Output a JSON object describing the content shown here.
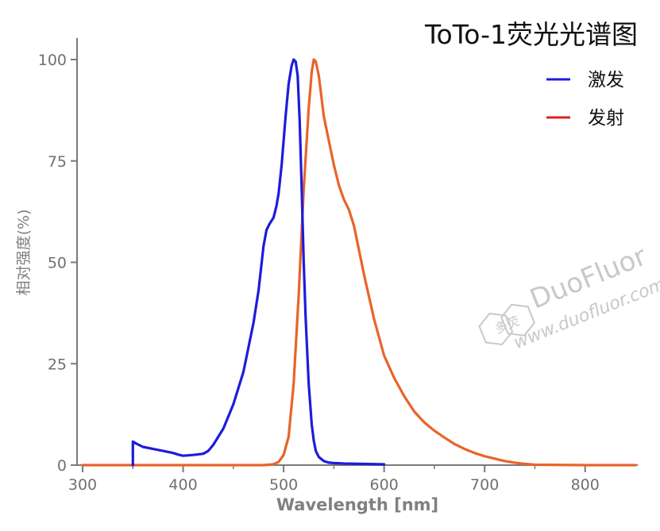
{
  "chart_data": {
    "type": "line",
    "title": "ToTo-1荧光光谱图",
    "xlabel": "Wavelength [nm]",
    "ylabel": "相对强度(%)",
    "xlim": [
      300,
      850
    ],
    "ylim": [
      0,
      100
    ],
    "xticks": [
      300,
      400,
      500,
      600,
      700,
      800
    ],
    "yticks": [
      0,
      25,
      50,
      75,
      100
    ],
    "legend_position": "top-right",
    "grid": false,
    "series": [
      {
        "name": "激发",
        "color": "#1c1cdc",
        "x": [
          350,
          350,
          352,
          360,
          370,
          380,
          390,
          395,
          400,
          405,
          410,
          420,
          425,
          430,
          440,
          450,
          460,
          465,
          470,
          475,
          480,
          483,
          486,
          490,
          493,
          495,
          498,
          500,
          502,
          505,
          508,
          510,
          512,
          514,
          516,
          518,
          520,
          522,
          525,
          528,
          530,
          532,
          535,
          540,
          545,
          550,
          560,
          580,
          600
        ],
        "y": [
          0,
          5.8,
          5.5,
          4.5,
          4.0,
          3.5,
          3.0,
          2.6,
          2.3,
          2.4,
          2.5,
          2.8,
          3.5,
          5,
          9,
          15,
          23,
          29,
          35,
          43,
          54,
          58,
          59.5,
          61,
          64,
          67,
          74,
          80,
          86,
          94,
          98.5,
          100,
          99.5,
          96,
          85,
          68,
          50,
          36,
          20,
          10,
          6,
          3.5,
          2,
          1,
          0.6,
          0.5,
          0.4,
          0.3,
          0.2
        ]
      },
      {
        "name": "发射",
        "color": "#dd2020",
        "x": [
          300,
          400,
          450,
          480,
          490,
          495,
          500,
          505,
          510,
          515,
          520,
          525,
          528,
          530,
          532,
          535,
          538,
          540,
          545,
          550,
          555,
          560,
          565,
          570,
          580,
          590,
          600,
          610,
          620,
          630,
          640,
          650,
          660,
          670,
          680,
          690,
          700,
          710,
          720,
          730,
          740,
          750,
          800,
          850
        ],
        "y": [
          0,
          0,
          0,
          0,
          0.2,
          0.8,
          2.5,
          7,
          20,
          42,
          68,
          88,
          97,
          100,
          99.5,
          96,
          90,
          86,
          80,
          74,
          69,
          65.5,
          63,
          59,
          47,
          36,
          27,
          21.5,
          17,
          13.2,
          10.5,
          8.5,
          6.8,
          5.2,
          4,
          3,
          2.2,
          1.6,
          1,
          0.6,
          0.3,
          0.1,
          0,
          0
        ]
      }
    ]
  },
  "colors": {
    "emission_curve": "#e8642a",
    "axis": "#7a7a7a",
    "watermark": "#c8c8c8"
  },
  "watermark": {
    "logo_text": "多荧",
    "brand": "DuoFluor",
    "url": "www.duofluor.com"
  }
}
